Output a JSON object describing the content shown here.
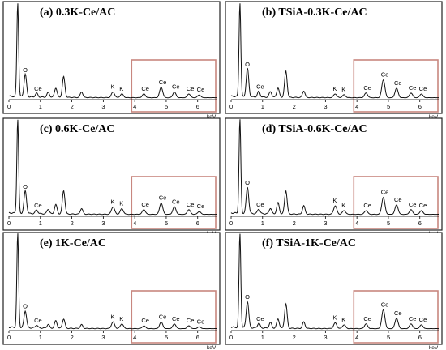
{
  "figure": {
    "frame_color": "#222222",
    "spectrum_color": "#111111",
    "highlight_color": "#c8877f"
  },
  "chart_data": [
    {
      "type": "line",
      "title": "(a)  0.3K-Ce/AC",
      "xlabel": "keV",
      "xlim": [
        0,
        6.6
      ],
      "xticks": [
        "0",
        "1",
        "2",
        "3",
        "4",
        "5",
        "6"
      ],
      "highlight_x_range": [
        3.9,
        6.6
      ],
      "peaks": [
        {
          "label": "",
          "x": 0.28,
          "y": 100
        },
        {
          "label": "O",
          "x": 0.52,
          "y": 24
        },
        {
          "label": "Ce",
          "x": 0.88,
          "y": 4
        },
        {
          "label": "",
          "x": 1.25,
          "y": 5
        },
        {
          "label": "",
          "x": 1.49,
          "y": 10
        },
        {
          "label": "",
          "x": 1.74,
          "y": 22
        },
        {
          "label": "",
          "x": 2.31,
          "y": 6
        },
        {
          "label": "K",
          "x": 3.31,
          "y": 6
        },
        {
          "label": "K",
          "x": 3.59,
          "y": 4
        },
        {
          "label": "Ce",
          "x": 4.29,
          "y": 4
        },
        {
          "label": "Ce",
          "x": 4.84,
          "y": 11
        },
        {
          "label": "Ce",
          "x": 5.26,
          "y": 6
        },
        {
          "label": "Ce",
          "x": 5.72,
          "y": 4
        },
        {
          "label": "Ce",
          "x": 6.05,
          "y": 3
        }
      ]
    },
    {
      "type": "line",
      "title": "(b)  TSiA-0.3K-Ce/AC",
      "xlabel": "keV",
      "xlim": [
        0,
        6.6
      ],
      "xticks": [
        "0",
        "1",
        "2",
        "3",
        "4",
        "5",
        "6"
      ],
      "highlight_x_range": [
        3.9,
        6.6
      ],
      "peaks": [
        {
          "label": "",
          "x": 0.28,
          "y": 100
        },
        {
          "label": "O",
          "x": 0.52,
          "y": 30
        },
        {
          "label": "Ce",
          "x": 0.88,
          "y": 6
        },
        {
          "label": "",
          "x": 1.25,
          "y": 6
        },
        {
          "label": "",
          "x": 1.49,
          "y": 10
        },
        {
          "label": "",
          "x": 1.74,
          "y": 28
        },
        {
          "label": "",
          "x": 2.31,
          "y": 7
        },
        {
          "label": "K",
          "x": 3.31,
          "y": 4
        },
        {
          "label": "K",
          "x": 3.59,
          "y": 3
        },
        {
          "label": "Ce",
          "x": 4.29,
          "y": 5
        },
        {
          "label": "Ce",
          "x": 4.84,
          "y": 19
        },
        {
          "label": "Ce",
          "x": 5.26,
          "y": 10
        },
        {
          "label": "Ce",
          "x": 5.72,
          "y": 5
        },
        {
          "label": "Ce",
          "x": 6.05,
          "y": 4
        }
      ]
    },
    {
      "type": "line",
      "title": "(c)  0.6K-Ce/AC",
      "xlabel": "keV",
      "xlim": [
        0,
        6.6
      ],
      "xticks": [
        "0",
        "1",
        "2",
        "3",
        "4",
        "5",
        "6"
      ],
      "highlight_x_range": [
        3.9,
        6.6
      ],
      "peaks": [
        {
          "label": "",
          "x": 0.28,
          "y": 100
        },
        {
          "label": "O",
          "x": 0.52,
          "y": 24
        },
        {
          "label": "Ce",
          "x": 0.88,
          "y": 4
        },
        {
          "label": "",
          "x": 1.25,
          "y": 5
        },
        {
          "label": "",
          "x": 1.49,
          "y": 10
        },
        {
          "label": "",
          "x": 1.74,
          "y": 25
        },
        {
          "label": "",
          "x": 2.31,
          "y": 6
        },
        {
          "label": "K",
          "x": 3.31,
          "y": 8
        },
        {
          "label": "K",
          "x": 3.59,
          "y": 6
        },
        {
          "label": "Ce",
          "x": 4.29,
          "y": 5
        },
        {
          "label": "Ce",
          "x": 4.84,
          "y": 12
        },
        {
          "label": "Ce",
          "x": 5.26,
          "y": 8
        },
        {
          "label": "Ce",
          "x": 5.72,
          "y": 5
        },
        {
          "label": "Ce",
          "x": 6.05,
          "y": 3
        }
      ]
    },
    {
      "type": "line",
      "title": "(d)  TSiA-0.6K-Ce/AC",
      "xlabel": "keV",
      "xlim": [
        0,
        6.6
      ],
      "xticks": [
        "0",
        "1",
        "2",
        "3",
        "4",
        "5",
        "6"
      ],
      "highlight_x_range": [
        3.9,
        6.6
      ],
      "peaks": [
        {
          "label": "",
          "x": 0.28,
          "y": 100
        },
        {
          "label": "O",
          "x": 0.52,
          "y": 28
        },
        {
          "label": "Ce",
          "x": 0.88,
          "y": 5
        },
        {
          "label": "",
          "x": 1.25,
          "y": 6
        },
        {
          "label": "",
          "x": 1.49,
          "y": 12
        },
        {
          "label": "",
          "x": 1.74,
          "y": 25
        },
        {
          "label": "",
          "x": 2.31,
          "y": 9
        },
        {
          "label": "K",
          "x": 3.31,
          "y": 9
        },
        {
          "label": "K",
          "x": 3.59,
          "y": 4
        },
        {
          "label": "Ce",
          "x": 4.29,
          "y": 4
        },
        {
          "label": "Ce",
          "x": 4.84,
          "y": 18
        },
        {
          "label": "Ce",
          "x": 5.26,
          "y": 10
        },
        {
          "label": "Ce",
          "x": 5.72,
          "y": 5
        },
        {
          "label": "Ce",
          "x": 6.05,
          "y": 4
        }
      ]
    },
    {
      "type": "line",
      "title": "(e)  1K-Ce/AC",
      "xlabel": "keV",
      "xlim": [
        0,
        6.6
      ],
      "xticks": [
        "0",
        "1",
        "2",
        "3",
        "4",
        "5",
        "6"
      ],
      "highlight_x_range": [
        3.9,
        6.6
      ],
      "peaks": [
        {
          "label": "",
          "x": 0.28,
          "y": 100
        },
        {
          "label": "O",
          "x": 0.52,
          "y": 18
        },
        {
          "label": "Ce",
          "x": 0.88,
          "y": 3
        },
        {
          "label": "",
          "x": 1.25,
          "y": 4
        },
        {
          "label": "",
          "x": 1.49,
          "y": 8
        },
        {
          "label": "",
          "x": 1.74,
          "y": 10
        },
        {
          "label": "",
          "x": 2.31,
          "y": 4
        },
        {
          "label": "K",
          "x": 3.31,
          "y": 7
        },
        {
          "label": "K",
          "x": 3.59,
          "y": 5
        },
        {
          "label": "Ce",
          "x": 4.29,
          "y": 3
        },
        {
          "label": "Ce",
          "x": 4.84,
          "y": 7
        },
        {
          "label": "Ce",
          "x": 5.26,
          "y": 5
        },
        {
          "label": "Ce",
          "x": 5.72,
          "y": 3
        },
        {
          "label": "Ce",
          "x": 6.05,
          "y": 2
        }
      ]
    },
    {
      "type": "line",
      "title": "(f)  TSiA-1K-Ce/AC",
      "xlabel": "keV",
      "xlim": [
        0,
        6.6
      ],
      "xticks": [
        "0",
        "1",
        "2",
        "3",
        "4",
        "5",
        "6"
      ],
      "highlight_x_range": [
        3.9,
        6.6
      ],
      "peaks": [
        {
          "label": "",
          "x": 0.28,
          "y": 100
        },
        {
          "label": "O",
          "x": 0.52,
          "y": 28
        },
        {
          "label": "Ce",
          "x": 0.88,
          "y": 5
        },
        {
          "label": "",
          "x": 1.25,
          "y": 6
        },
        {
          "label": "",
          "x": 1.49,
          "y": 10
        },
        {
          "label": "",
          "x": 1.74,
          "y": 26
        },
        {
          "label": "",
          "x": 2.31,
          "y": 7
        },
        {
          "label": "K",
          "x": 3.31,
          "y": 6
        },
        {
          "label": "K",
          "x": 3.59,
          "y": 4
        },
        {
          "label": "Ce",
          "x": 4.29,
          "y": 5
        },
        {
          "label": "Ce",
          "x": 4.84,
          "y": 20
        },
        {
          "label": "Ce",
          "x": 5.26,
          "y": 11
        },
        {
          "label": "Ce",
          "x": 5.72,
          "y": 5
        },
        {
          "label": "Ce",
          "x": 6.05,
          "y": 4
        }
      ]
    }
  ]
}
